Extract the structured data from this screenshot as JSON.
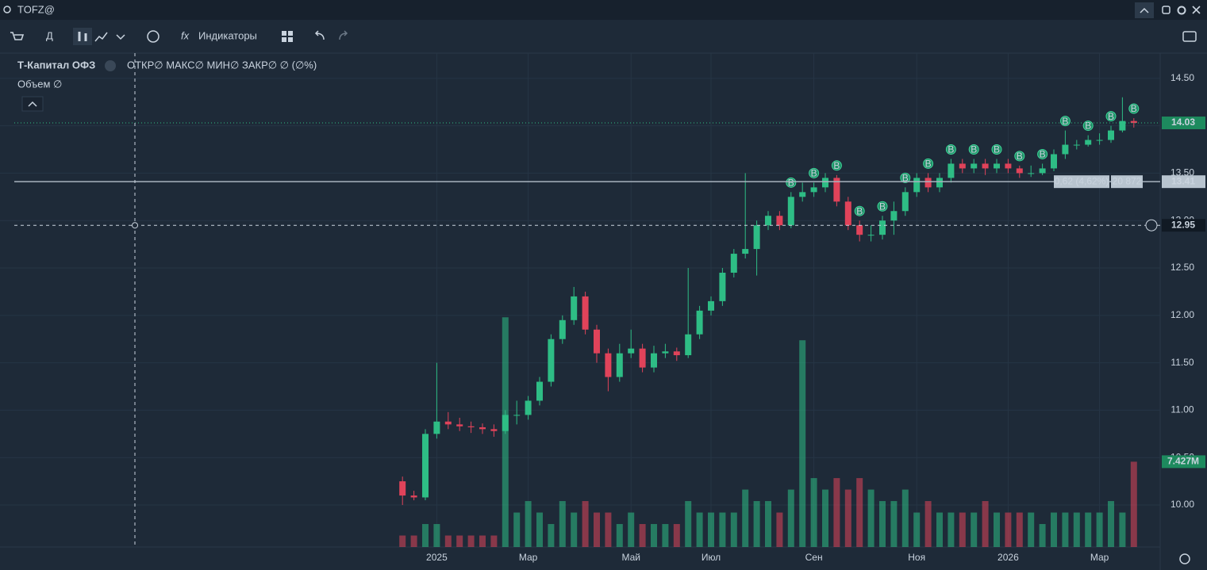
{
  "ui": {
    "ticker": "TOFZ@",
    "interval": "Д",
    "indicators": "Индикаторы",
    "instrument": "Т-Капитал ОФЗ",
    "ohlc": "ОТКР∅ МАКС∅ МИН∅ ЗАКР∅ ∅ (∅%)",
    "volume_label": "Объем ∅",
    "measure": "0,62 (4,62%)",
    "measure_volume": "20 872",
    "trade_marker": "B"
  },
  "chart_data": {
    "type": "candlestick",
    "up_color": "#2ebd85",
    "down_color": "#e0435a",
    "categories": [
      null,
      null,
      null,
      "2025",
      null,
      null,
      null,
      null,
      null,
      null,
      null,
      "Мар",
      null,
      null,
      null,
      null,
      null,
      null,
      null,
      null,
      "Май",
      null,
      null,
      null,
      null,
      null,
      null,
      "Июл",
      null,
      null,
      null,
      null,
      null,
      null,
      null,
      null,
      "Сен",
      null,
      null,
      null,
      null,
      null,
      null,
      null,
      null,
      "Ноя",
      null,
      null,
      null,
      null,
      null,
      null,
      null,
      "2026",
      null,
      null,
      null,
      null,
      null,
      null,
      null,
      "Мар",
      null,
      null,
      null
    ],
    "open": [
      10.25,
      10.1,
      10.08,
      10.75,
      10.88,
      10.85,
      10.83,
      10.82,
      10.8,
      10.78,
      10.95,
      10.95,
      11.1,
      11.3,
      11.75,
      11.95,
      12.2,
      11.85,
      11.6,
      11.35,
      11.6,
      11.65,
      11.45,
      11.6,
      11.62,
      11.58,
      11.8,
      12.05,
      12.15,
      12.45,
      12.65,
      12.7,
      12.95,
      13.05,
      12.95,
      13.25,
      13.3,
      13.35,
      13.45,
      13.2,
      12.95,
      12.85,
      12.85,
      13.0,
      13.1,
      13.3,
      13.45,
      13.35,
      13.45,
      13.6,
      13.55,
      13.6,
      13.55,
      13.6,
      13.55,
      13.5,
      13.5,
      13.55,
      13.7,
      13.8,
      13.8,
      13.85,
      13.85,
      13.95,
      14.05
    ],
    "high": [
      10.3,
      10.15,
      10.8,
      11.5,
      10.98,
      10.92,
      10.88,
      10.86,
      10.85,
      11.0,
      11.1,
      11.15,
      11.35,
      11.8,
      12.0,
      12.3,
      12.25,
      11.9,
      11.65,
      11.7,
      11.85,
      11.7,
      11.68,
      11.7,
      11.66,
      12.5,
      12.1,
      12.2,
      12.5,
      12.7,
      13.5,
      13.0,
      13.1,
      13.1,
      13.3,
      13.4,
      13.4,
      13.5,
      13.48,
      13.25,
      13.0,
      12.95,
      13.05,
      13.2,
      13.35,
      13.5,
      13.5,
      13.5,
      13.65,
      13.65,
      13.65,
      13.65,
      13.65,
      13.65,
      13.58,
      13.58,
      13.6,
      13.75,
      13.95,
      13.85,
      13.9,
      13.92,
      14.0,
      14.3,
      14.08
    ],
    "low": [
      10.0,
      10.05,
      10.05,
      10.7,
      10.8,
      10.78,
      10.76,
      10.75,
      10.72,
      10.75,
      10.85,
      10.9,
      11.05,
      11.25,
      11.7,
      11.9,
      11.8,
      11.5,
      11.2,
      11.3,
      11.55,
      11.4,
      11.4,
      11.55,
      11.52,
      11.55,
      11.75,
      12.0,
      12.1,
      12.4,
      12.6,
      12.42,
      12.9,
      12.9,
      12.92,
      13.2,
      13.25,
      13.3,
      13.15,
      12.9,
      12.78,
      12.78,
      12.8,
      12.85,
      13.05,
      13.25,
      13.3,
      13.3,
      13.4,
      13.5,
      13.5,
      13.48,
      13.5,
      13.5,
      13.45,
      13.46,
      13.48,
      13.52,
      13.65,
      13.75,
      13.78,
      13.8,
      13.82,
      13.93,
      13.98
    ],
    "close": [
      10.1,
      10.08,
      10.75,
      10.88,
      10.85,
      10.83,
      10.82,
      10.8,
      10.78,
      10.95,
      10.95,
      11.1,
      11.3,
      11.75,
      11.95,
      12.2,
      11.85,
      11.6,
      11.35,
      11.6,
      11.65,
      11.45,
      11.6,
      11.62,
      11.58,
      11.8,
      12.05,
      12.15,
      12.45,
      12.65,
      12.7,
      12.95,
      13.05,
      12.95,
      13.25,
      13.3,
      13.35,
      13.45,
      13.2,
      12.95,
      12.85,
      12.85,
      13.0,
      13.1,
      13.3,
      13.45,
      13.35,
      13.45,
      13.6,
      13.55,
      13.6,
      13.55,
      13.6,
      13.55,
      13.5,
      13.5,
      13.55,
      13.7,
      13.8,
      13.8,
      13.85,
      13.85,
      13.95,
      14.05,
      14.03
    ],
    "volume": [
      1,
      1,
      2,
      2,
      1,
      1,
      1,
      1,
      1,
      20,
      3,
      4,
      3,
      2,
      4,
      3,
      4,
      3,
      3,
      2,
      3,
      2,
      2,
      2,
      2,
      4,
      3,
      3,
      3,
      3,
      5,
      4,
      4,
      3,
      5,
      18,
      6,
      5,
      6,
      5,
      6,
      5,
      4,
      4,
      5,
      3,
      4,
      3,
      3,
      3,
      3,
      4,
      3,
      3,
      3,
      3,
      2,
      3,
      3,
      3,
      3,
      3,
      4,
      3,
      7.427
    ],
    "ylim": [
      9.557,
      14.766
    ],
    "y2lim": [
      0,
      43
    ],
    "yticks": [
      {
        "value": 10,
        "label": "10.00"
      },
      {
        "value": 10.5,
        "label": "10.50"
      },
      {
        "value": 11,
        "label": "11.00"
      },
      {
        "value": 11.5,
        "label": "11.50"
      },
      {
        "value": 12,
        "label": "12.00"
      },
      {
        "value": 12.5,
        "label": "12.50"
      },
      {
        "value": 13,
        "label": "13.00"
      },
      {
        "value": 13.5,
        "label": "13.50"
      },
      {
        "value": 14,
        "label": "14.00"
      },
      {
        "value": 14.5,
        "label": "14.50"
      }
    ],
    "last_price": 14.03,
    "level": 13.41,
    "crosshair": 12.95,
    "last_volume": {
      "value": 7.427,
      "label": "7.427M"
    },
    "grid": true
  }
}
